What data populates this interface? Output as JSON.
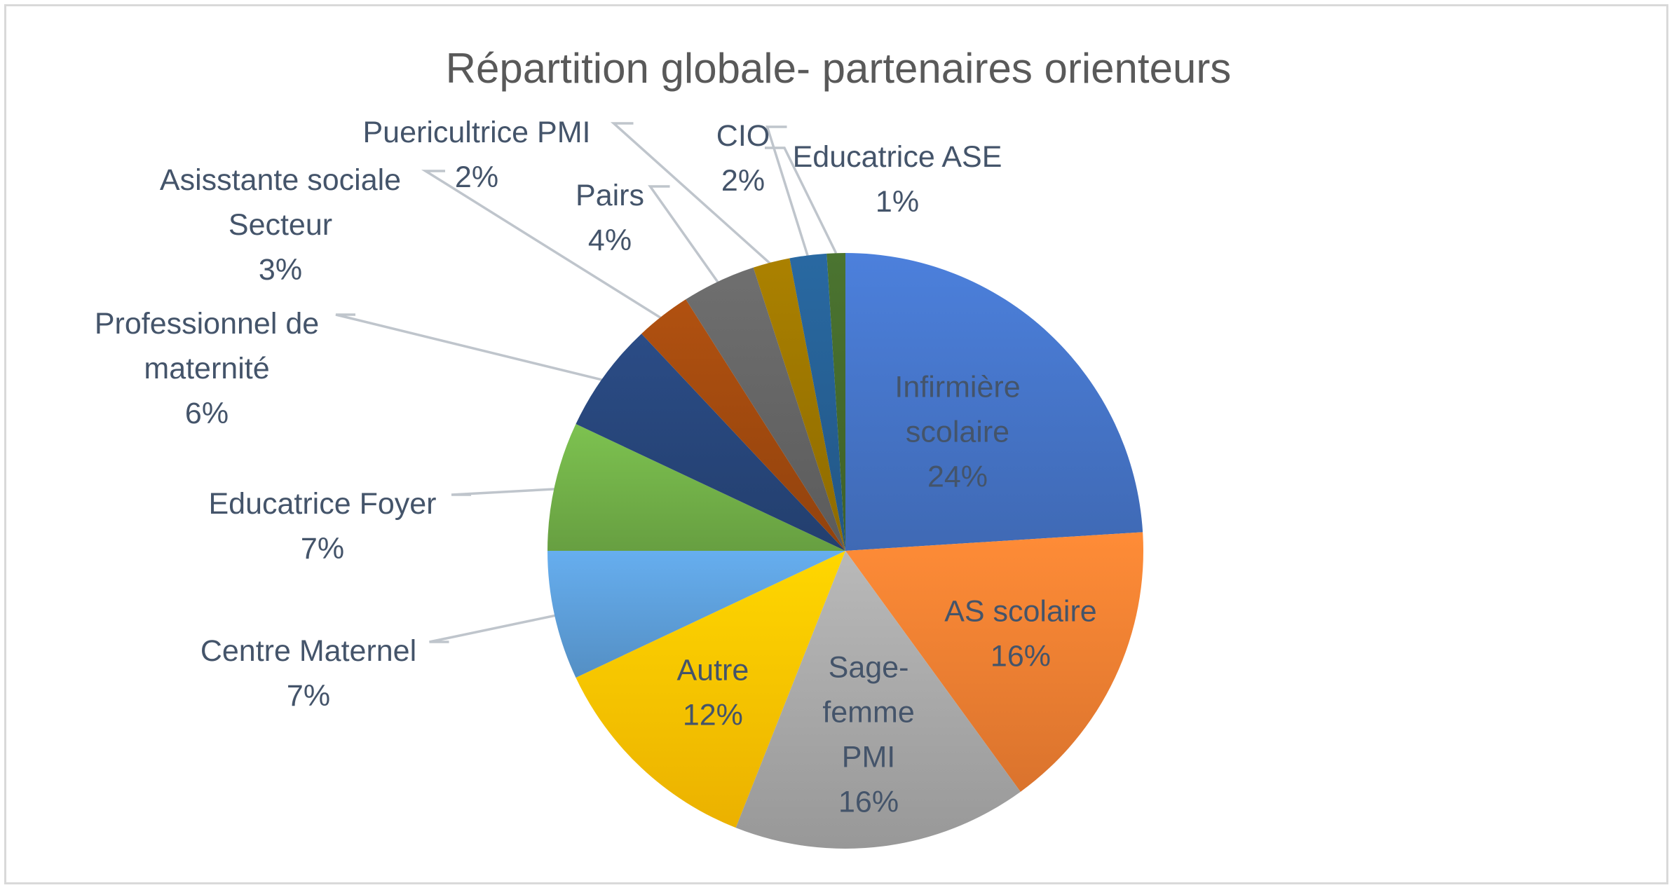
{
  "chart_data": {
    "type": "pie",
    "title": "Répartition globale- partenaires orienteurs",
    "slices": [
      {
        "name": "Infirmière scolaire",
        "label_lines": [
          "Infirmière",
          "scolaire"
        ],
        "value": 24,
        "value_label": "24%",
        "color": "#4472c4",
        "label_color": "#44546a",
        "label_inside": true
      },
      {
        "name": "AS scolaire",
        "label_lines": [
          "AS scolaire"
        ],
        "value": 16,
        "value_label": "16%",
        "color": "#ed7d31",
        "label_color": "#44546a",
        "label_inside": true
      },
      {
        "name": "Sage-femme PMI",
        "label_lines": [
          "Sage-",
          "femme",
          "PMI"
        ],
        "value": 16,
        "value_label": "16%",
        "color": "#a5a5a5",
        "label_color": "#44546a",
        "label_inside": true
      },
      {
        "name": "Autre",
        "label_lines": [
          "Autre"
        ],
        "value": 12,
        "value_label": "12%",
        "color": "#ffc000",
        "label_color": "#44546a",
        "label_inside": true
      },
      {
        "name": "Centre Maternel",
        "label_lines": [
          "Centre Maternel"
        ],
        "value": 7,
        "value_label": "7%",
        "color": "#5b9bd5",
        "label_color": "#44546a",
        "label_inside": false
      },
      {
        "name": "Educatrice Foyer",
        "label_lines": [
          "Educatrice Foyer"
        ],
        "value": 7,
        "value_label": "7%",
        "color": "#70ad47",
        "label_color": "#44546a",
        "label_inside": false
      },
      {
        "name": "Professionnel de maternité",
        "label_lines": [
          "Professionnel de",
          "maternité"
        ],
        "value": 6,
        "value_label": "6%",
        "color": "#264478",
        "label_color": "#44546a",
        "label_inside": false
      },
      {
        "name": "Asisstante sociale Secteur",
        "label_lines": [
          "Asisstante sociale",
          "Secteur"
        ],
        "value": 3,
        "value_label": "3%",
        "color": "#9e480e",
        "label_color": "#44546a",
        "label_inside": false
      },
      {
        "name": "Pairs",
        "label_lines": [
          "Pairs"
        ],
        "value": 4,
        "value_label": "4%",
        "color": "#636363",
        "label_color": "#44546a",
        "label_inside": false
      },
      {
        "name": "Puericultrice PMI",
        "label_lines": [
          "Puericultrice PMI"
        ],
        "value": 2,
        "value_label": "2%",
        "color": "#997300",
        "label_color": "#44546a",
        "label_inside": false
      },
      {
        "name": "CIO",
        "label_lines": [
          "CIO"
        ],
        "value": 2,
        "value_label": "2%",
        "color": "#255e91",
        "label_color": "#44546a",
        "label_inside": false
      },
      {
        "name": "Educatrice ASE",
        "label_lines": [
          "Educatrice ASE"
        ],
        "value": 1,
        "value_label": "1%",
        "color": "#43682b",
        "label_color": "#44546a",
        "label_inside": false
      }
    ],
    "legend": "none"
  }
}
